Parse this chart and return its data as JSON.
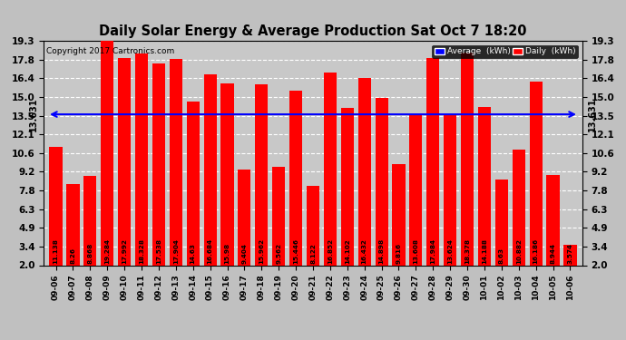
{
  "title": "Daily Solar Energy & Average Production Sat Oct 7 18:20",
  "copyright": "Copyright 2017 Cartronics.com",
  "average_value": 13.631,
  "bar_color": "#FF0000",
  "average_line_color": "#0000FF",
  "background_color": "#C0C0C0",
  "plot_bg_color": "#C8C8C8",
  "categories": [
    "09-06",
    "09-07",
    "09-08",
    "09-09",
    "09-10",
    "09-11",
    "09-12",
    "09-13",
    "09-14",
    "09-15",
    "09-16",
    "09-17",
    "09-18",
    "09-19",
    "09-20",
    "09-21",
    "09-22",
    "09-23",
    "09-24",
    "09-25",
    "09-26",
    "09-27",
    "09-28",
    "09-29",
    "09-30",
    "10-01",
    "10-02",
    "10-03",
    "10-04",
    "10-05",
    "10-06"
  ],
  "values": [
    11.138,
    8.26,
    8.868,
    19.284,
    17.992,
    18.328,
    17.538,
    17.904,
    14.63,
    16.684,
    15.98,
    9.404,
    15.962,
    9.562,
    15.446,
    8.122,
    16.852,
    14.102,
    16.432,
    14.898,
    9.816,
    13.608,
    17.984,
    13.624,
    18.378,
    14.188,
    8.63,
    10.882,
    16.186,
    8.944,
    3.574
  ],
  "ylim": [
    2.0,
    19.3
  ],
  "yticks": [
    2.0,
    3.4,
    4.9,
    6.3,
    7.8,
    9.2,
    10.6,
    12.1,
    13.5,
    15.0,
    16.4,
    17.8,
    19.3
  ],
  "grid_color": "#FFFFFF",
  "legend_avg_label": "Average  (kWh)",
  "legend_daily_label": "Daily  (kWh)"
}
